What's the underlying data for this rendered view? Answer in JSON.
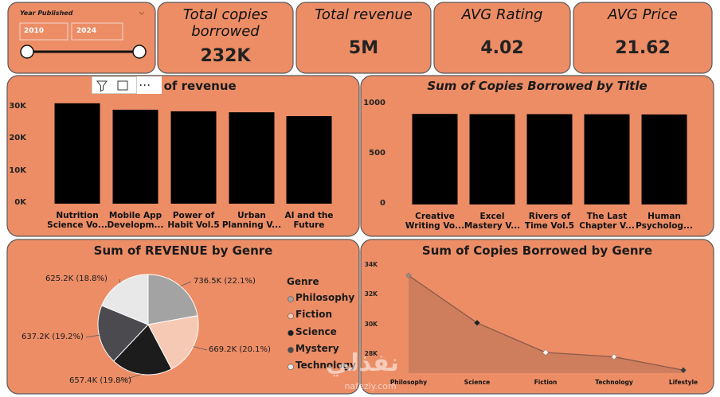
{
  "slicer": {
    "title": "Year Published",
    "from": "2010",
    "to": "2024"
  },
  "cards": [
    {
      "title": "Total copies borrowed",
      "value": "232K"
    },
    {
      "title": "Total revenue",
      "value": "5M"
    },
    {
      "title": "AVG Rating",
      "value": "4.02"
    },
    {
      "title": "AVG Price",
      "value": "21.62"
    }
  ],
  "chart_data": [
    {
      "type": "bar",
      "title": "Sum of revenue",
      "categories": [
        "Nutrition Science Vo...",
        "Mobile App Developm...",
        "Power of Habit Vol.5",
        "Urban Planning V...",
        "AI and the Future"
      ],
      "values": [
        31300,
        29300,
        28800,
        28500,
        27300
      ],
      "color": "#000000",
      "ylim": [
        0,
        33000
      ],
      "yticks": [
        {
          "value": 0,
          "label": "0K"
        },
        {
          "value": 10000,
          "label": "10K"
        },
        {
          "value": 20000,
          "label": "20K"
        },
        {
          "value": 30000,
          "label": "30K"
        }
      ]
    },
    {
      "type": "bar",
      "title": "Sum of Copies Borrowed by Title",
      "categories": [
        "Creative Writing Vo...",
        "Excel Mastery V...",
        "Rivers of Time Vol.5",
        "The Last Chapter V...",
        "Human Psycholog..."
      ],
      "values": [
        905,
        903,
        903,
        902,
        900
      ],
      "color": "#000000",
      "ylim": [
        0,
        1050
      ],
      "yticks": [
        0,
        500,
        1000
      ]
    },
    {
      "type": "pie",
      "title": "Sum of REVENUE by Genre",
      "legend_title": "Genre",
      "categories": [
        "Philosophy",
        "Fiction",
        "Science",
        "Mystery",
        "Technology"
      ],
      "values": [
        736.5,
        669.2,
        657.4,
        637.2,
        625.2
      ],
      "value_labels": [
        "736.5K (22.1%)",
        "669.2K (20.1%)",
        "657.4K (19.8%)",
        "637.2K (19.2%)",
        "625.2K (18.8%)"
      ],
      "colors": [
        "#a3a3a3",
        "#f6c9b4",
        "#1c1c1c",
        "#4b4a4f",
        "#e8e8e8"
      ]
    },
    {
      "type": "line",
      "title": "Sum of Copies Borrowed by Genre",
      "categories": [
        "Philosophy",
        "Science",
        "Fiction",
        "Technology",
        "Lifestyle"
      ],
      "values": [
        33400,
        30200,
        28200,
        27900,
        27000
      ],
      "color": "#8a5a48",
      "fill": "#c97b5c",
      "marker_colors": [
        "#9a8a85",
        "#1c1c1c",
        "#ffffff",
        "#f3ece8",
        "#3a3a3a"
      ],
      "ylim": [
        26800,
        34600
      ],
      "yticks": [
        {
          "value": 28000,
          "label": "28K"
        },
        {
          "value": 30000,
          "label": "30K"
        },
        {
          "value": 32000,
          "label": "32K"
        },
        {
          "value": 34000,
          "label": "34K"
        }
      ]
    }
  ],
  "watermark": {
    "text": "نفذلي",
    "url": "nafezly.com"
  }
}
